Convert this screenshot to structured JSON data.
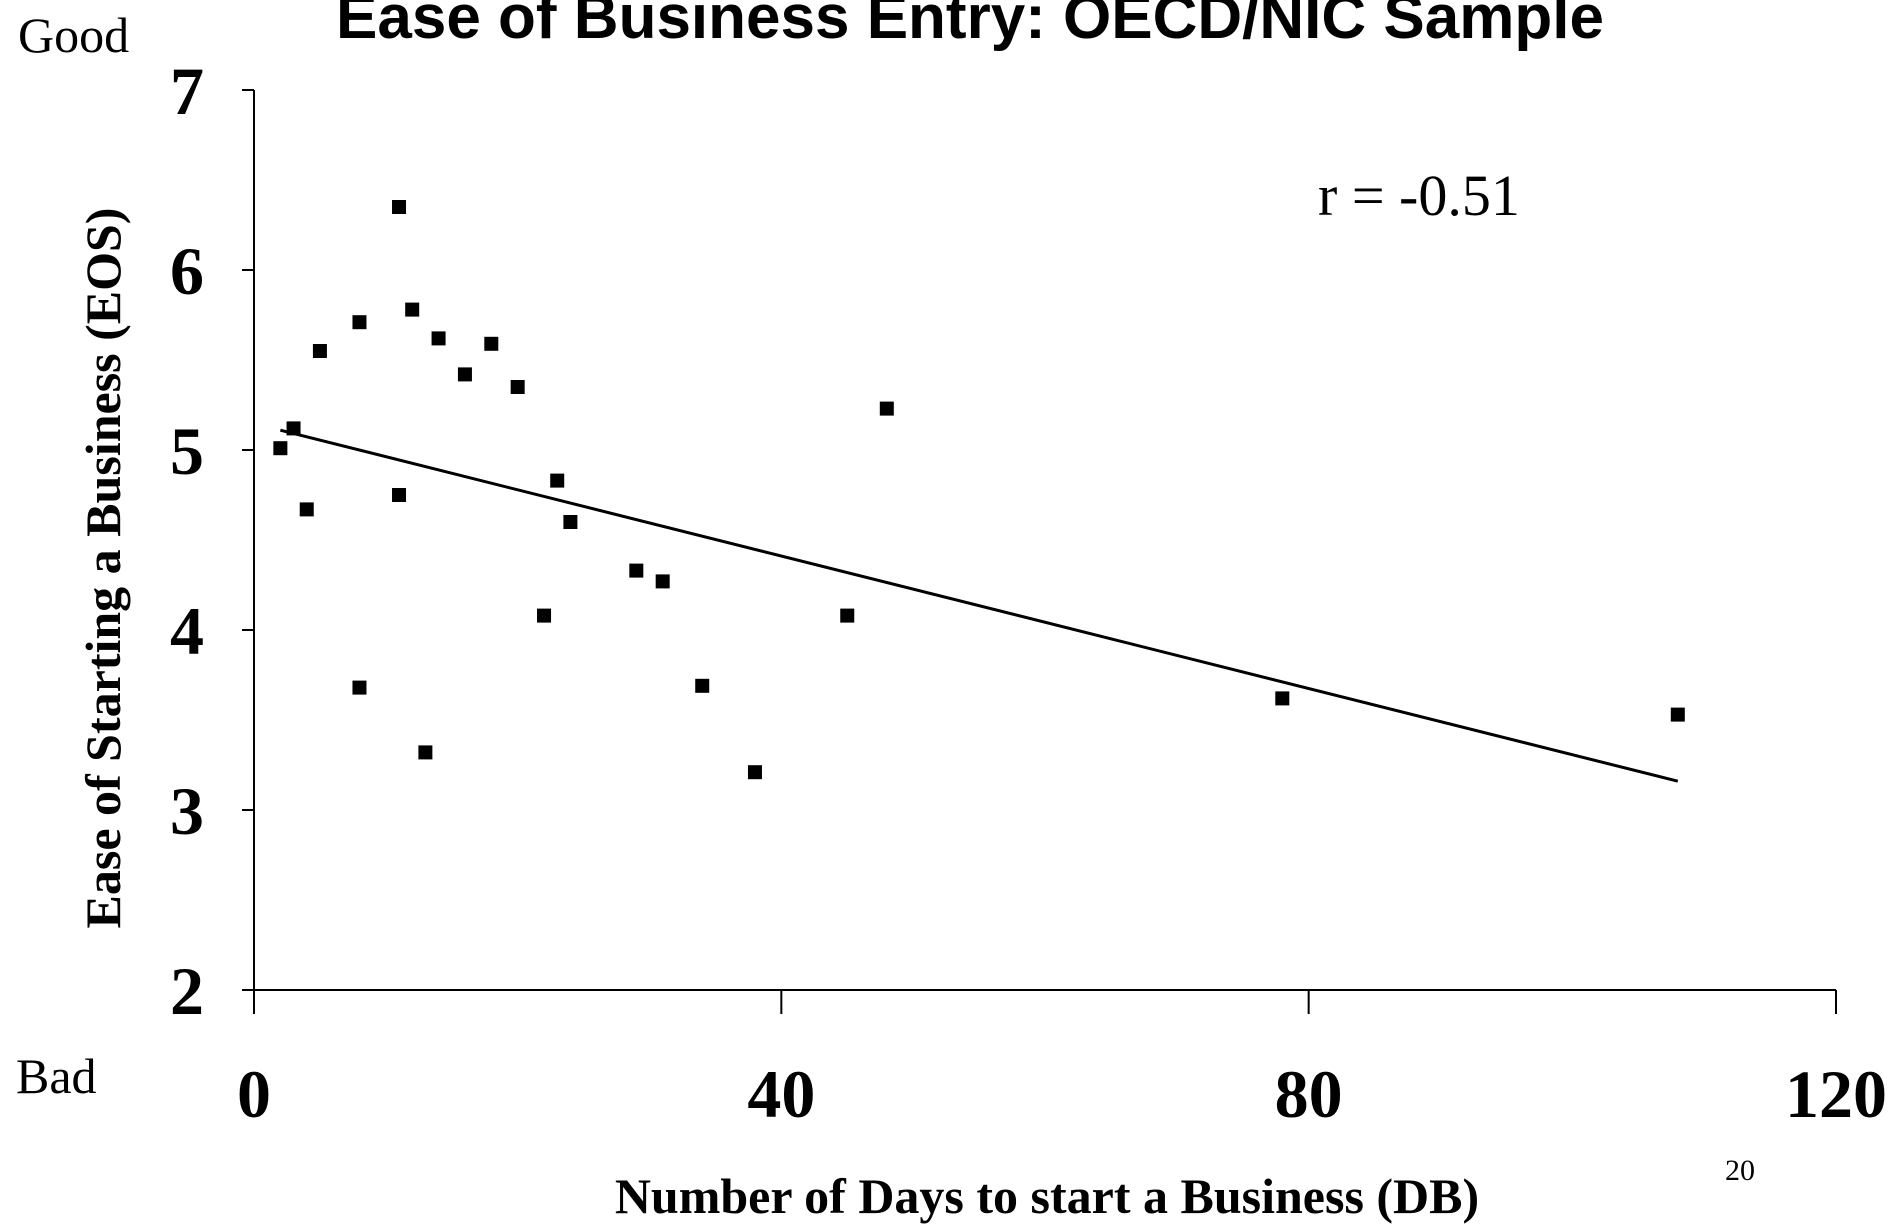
{
  "slide": {
    "good_label": "Good",
    "bad_label": "Bad",
    "page_number": "20"
  },
  "chart_data": {
    "type": "scatter",
    "title": "Ease of Business Entry:  OECD/NIC Sample",
    "xlabel": "Number of Days to start a Business (DB)",
    "ylabel": "Ease of Starting a Business (EOS)",
    "xlim": [
      0,
      120
    ],
    "ylim": [
      2,
      7
    ],
    "x_ticks": [
      0,
      40,
      80,
      120
    ],
    "y_ticks": [
      2,
      3,
      4,
      5,
      6,
      7
    ],
    "x_tick_labels": [
      "0",
      "40",
      "80",
      "120"
    ],
    "y_tick_labels": [
      "2",
      "3",
      "4",
      "5",
      "6",
      "7"
    ],
    "grid": false,
    "annotation": "r = -0.51",
    "series": [
      {
        "points": [
          {
            "x": 2,
            "y": 5.01
          },
          {
            "x": 3,
            "y": 5.12
          },
          {
            "x": 4,
            "y": 4.67
          },
          {
            "x": 5,
            "y": 5.55
          },
          {
            "x": 8,
            "y": 5.71
          },
          {
            "x": 8,
            "y": 3.68
          },
          {
            "x": 11,
            "y": 6.35
          },
          {
            "x": 11,
            "y": 4.75
          },
          {
            "x": 12,
            "y": 5.78
          },
          {
            "x": 13,
            "y": 3.32
          },
          {
            "x": 14,
            "y": 5.62
          },
          {
            "x": 16,
            "y": 5.42
          },
          {
            "x": 18,
            "y": 5.59
          },
          {
            "x": 20,
            "y": 5.35
          },
          {
            "x": 22,
            "y": 4.08
          },
          {
            "x": 23,
            "y": 4.83
          },
          {
            "x": 24,
            "y": 4.6
          },
          {
            "x": 29,
            "y": 4.33
          },
          {
            "x": 31,
            "y": 4.27
          },
          {
            "x": 34,
            "y": 3.69
          },
          {
            "x": 38,
            "y": 3.21
          },
          {
            "x": 45,
            "y": 4.08
          },
          {
            "x": 48,
            "y": 5.23
          },
          {
            "x": 78,
            "y": 3.62
          },
          {
            "x": 108,
            "y": 3.53
          }
        ]
      }
    ],
    "trendline": {
      "type": "linear",
      "x": [
        2,
        108
      ],
      "y": [
        5.11,
        3.16
      ]
    },
    "colors": {
      "marker": "#000000",
      "line": "#000000",
      "axis": "#000000"
    }
  }
}
